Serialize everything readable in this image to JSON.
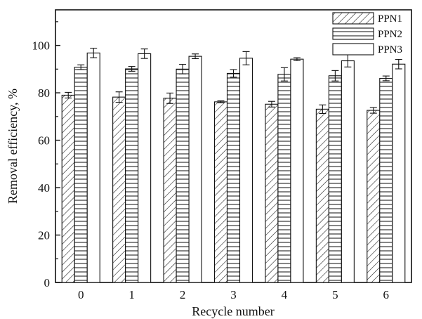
{
  "chart_data": {
    "type": "bar",
    "xlabel": "Recycle number",
    "ylabel": "Removal efficiency, %",
    "categories": [
      "0",
      "1",
      "2",
      "3",
      "4",
      "5",
      "6"
    ],
    "ylim": [
      0,
      115
    ],
    "yticks": [
      0,
      20,
      40,
      60,
      80,
      100
    ],
    "grid": false,
    "legend_position": "top-right",
    "series": [
      {
        "name": "PPN1",
        "pattern": "diagonal-hatch",
        "values": [
          79,
          78.2,
          77.7,
          76.2,
          75.2,
          73.1,
          72.6
        ],
        "errors": [
          1.2,
          2.2,
          2.2,
          0.4,
          1.2,
          1.8,
          1.2
        ]
      },
      {
        "name": "PPN2",
        "pattern": "horizontal-lines",
        "values": [
          90.8,
          90.1,
          90.0,
          88.2,
          87.8,
          87.2,
          86.1
        ],
        "errors": [
          1.0,
          1.0,
          2.0,
          1.6,
          2.8,
          2.2,
          1.0
        ]
      },
      {
        "name": "PPN3",
        "pattern": "blank",
        "values": [
          96.8,
          96.5,
          95.4,
          94.6,
          94.2,
          93.5,
          92.1
        ],
        "errors": [
          2.0,
          2.0,
          1.0,
          2.8,
          0.6,
          2.6,
          2.0
        ]
      }
    ]
  }
}
